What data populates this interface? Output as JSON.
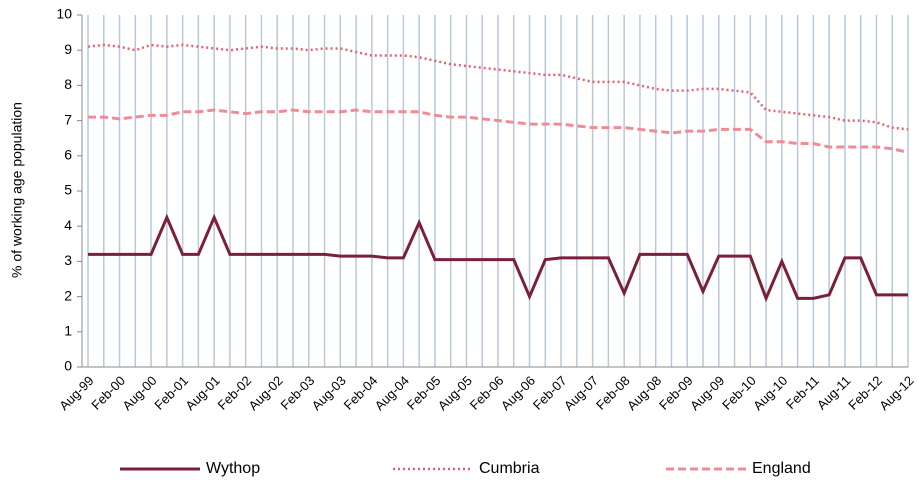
{
  "chart_data": {
    "type": "line",
    "y_label": "% of working age population",
    "categories": [
      "Aug-99",
      null,
      "Feb-00",
      null,
      "Aug-00",
      null,
      "Feb-01",
      null,
      "Aug-01",
      null,
      "Feb-02",
      null,
      "Aug-02",
      null,
      "Feb-03",
      null,
      "Aug-03",
      null,
      "Feb-04",
      null,
      "Aug-04",
      null,
      "Feb-05",
      null,
      "Aug-05",
      null,
      "Feb-06",
      null,
      "Aug-06",
      null,
      "Feb-07",
      null,
      "Aug-07",
      null,
      "Feb-08",
      null,
      "Aug-08",
      null,
      "Feb-09",
      null,
      "Aug-09",
      null,
      "Feb-10",
      null,
      "Aug-10",
      null,
      "Feb-11",
      null,
      "Aug-11",
      null,
      "Feb-12",
      null,
      "Aug-12"
    ],
    "series": [
      {
        "name": "Wythop",
        "color": "#7b1f3a",
        "style": "solid",
        "values": [
          3.2,
          3.2,
          3.2,
          3.2,
          3.2,
          4.25,
          3.2,
          3.2,
          4.25,
          3.2,
          3.2,
          3.2,
          3.2,
          3.2,
          3.2,
          3.2,
          3.15,
          3.15,
          3.15,
          3.1,
          3.1,
          4.1,
          3.05,
          3.05,
          3.05,
          3.05,
          3.05,
          3.05,
          2.0,
          3.05,
          3.1,
          3.1,
          3.1,
          3.1,
          2.1,
          3.2,
          3.2,
          3.2,
          3.2,
          2.15,
          3.15,
          3.15,
          3.15,
          1.95,
          3.0,
          1.95,
          1.95,
          2.05,
          3.1,
          3.1,
          2.05,
          2.05,
          2.05
        ]
      },
      {
        "name": "Cumbria",
        "color": "#e8606e",
        "style": "dotted",
        "values": [
          9.1,
          9.15,
          9.1,
          9.0,
          9.15,
          9.1,
          9.15,
          9.1,
          9.05,
          9.0,
          9.05,
          9.1,
          9.05,
          9.05,
          9.0,
          9.05,
          9.05,
          8.95,
          8.85,
          8.85,
          8.85,
          8.8,
          8.7,
          8.6,
          8.55,
          8.5,
          8.45,
          8.4,
          8.35,
          8.3,
          8.3,
          8.2,
          8.1,
          8.1,
          8.1,
          8.0,
          7.9,
          7.85,
          7.85,
          7.9,
          7.9,
          7.85,
          7.8,
          7.3,
          7.25,
          7.2,
          7.15,
          7.1,
          7.0,
          7.0,
          6.95,
          6.8,
          6.75
        ]
      },
      {
        "name": "England",
        "color": "#f08c96",
        "style": "dashed",
        "values": [
          7.1,
          7.1,
          7.05,
          7.1,
          7.15,
          7.15,
          7.25,
          7.25,
          7.3,
          7.25,
          7.2,
          7.25,
          7.25,
          7.3,
          7.25,
          7.25,
          7.25,
          7.3,
          7.25,
          7.25,
          7.25,
          7.25,
          7.15,
          7.1,
          7.1,
          7.05,
          7.0,
          6.95,
          6.9,
          6.9,
          6.9,
          6.85,
          6.8,
          6.8,
          6.8,
          6.75,
          6.7,
          6.65,
          6.7,
          6.7,
          6.75,
          6.75,
          6.75,
          6.4,
          6.4,
          6.35,
          6.35,
          6.25,
          6.25,
          6.25,
          6.25,
          6.2,
          6.1
        ]
      }
    ],
    "ylim": [
      0,
      10
    ],
    "yticks": [
      0,
      1,
      2,
      3,
      4,
      5,
      6,
      7,
      8,
      9,
      10
    ],
    "grid": "vertical",
    "legend": "bottom"
  }
}
